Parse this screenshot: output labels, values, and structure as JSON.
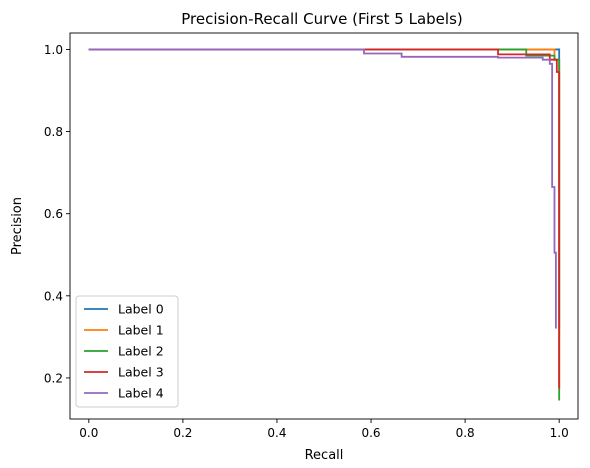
{
  "chart_data": {
    "type": "line",
    "title": "Precision-Recall Curve (First 5 Labels)",
    "xlabel": "Recall",
    "ylabel": "Precision",
    "xlim": [
      -0.04,
      1.04
    ],
    "ylim": [
      0.1,
      1.04
    ],
    "xticks": [
      0.0,
      0.2,
      0.4,
      0.6,
      0.8,
      1.0
    ],
    "xtick_labels": [
      "0.0",
      "0.2",
      "0.4",
      "0.6",
      "0.8",
      "1.0"
    ],
    "yticks": [
      0.2,
      0.4,
      0.6,
      0.8,
      1.0
    ],
    "ytick_labels": [
      "0.2",
      "0.4",
      "0.6",
      "0.8",
      "1.0"
    ],
    "grid": false,
    "legend_position": "lower-left",
    "series": [
      {
        "name": "Label 0",
        "color": "#1f77b4",
        "x": [
          0.0,
          1.0,
          1.0
        ],
        "y": [
          1.0,
          1.0,
          0.32
        ]
      },
      {
        "name": "Label 1",
        "color": "#ff7f0e",
        "x": [
          0.0,
          0.99,
          0.99,
          1.0,
          1.0
        ],
        "y": [
          1.0,
          1.0,
          0.975,
          0.975,
          0.17
        ]
      },
      {
        "name": "Label 2",
        "color": "#2ca02c",
        "x": [
          0.0,
          0.93,
          0.93,
          0.99,
          0.99,
          1.0,
          1.0
        ],
        "y": [
          1.0,
          1.0,
          0.985,
          0.985,
          0.975,
          0.975,
          0.145
        ]
      },
      {
        "name": "Label 3",
        "color": "#d62728",
        "x": [
          0.0,
          0.87,
          0.87,
          0.98,
          0.98,
          0.995,
          0.995,
          1.0,
          1.0
        ],
        "y": [
          1.0,
          1.0,
          0.988,
          0.988,
          0.975,
          0.975,
          0.945,
          0.945,
          0.175
        ]
      },
      {
        "name": "Label 4",
        "color": "#9467bd",
        "x": [
          0.0,
          0.585,
          0.585,
          0.665,
          0.665,
          0.87,
          0.87,
          0.965,
          0.965,
          0.98,
          0.98,
          0.985,
          0.985,
          0.99,
          0.99,
          0.993,
          0.993
        ],
        "y": [
          1.0,
          1.0,
          0.99,
          0.99,
          0.982,
          0.982,
          0.98,
          0.98,
          0.975,
          0.975,
          0.965,
          0.965,
          0.665,
          0.665,
          0.505,
          0.505,
          0.32
        ]
      }
    ]
  }
}
